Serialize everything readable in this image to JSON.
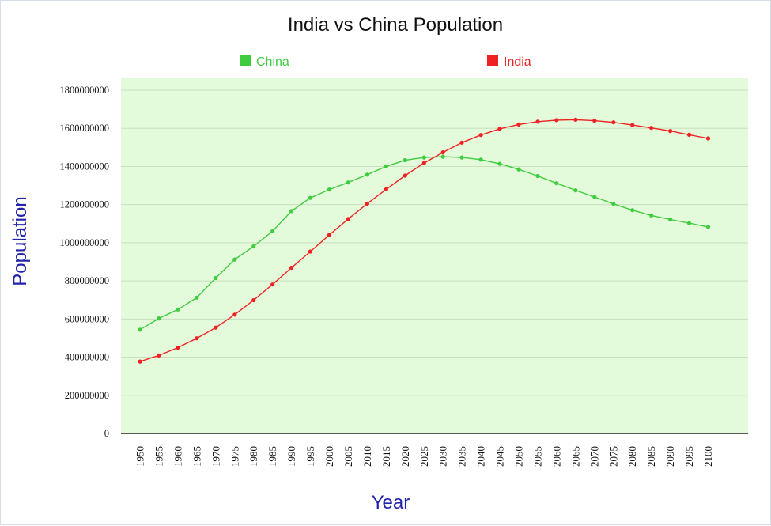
{
  "chart_data": {
    "type": "line",
    "title": "India vs China Population",
    "xlabel": "Year",
    "ylabel": "Population",
    "ylim": [
      0,
      1800000000
    ],
    "yticks": [
      0,
      200000000,
      400000000,
      600000000,
      800000000,
      1000000000,
      1200000000,
      1400000000,
      1600000000,
      1800000000
    ],
    "ytick_labels": [
      "0",
      "200000000",
      "400000000",
      "600000000",
      "800000000",
      "1000000000",
      "1200000000",
      "1400000000",
      "1600000000",
      "1800000000"
    ],
    "x": [
      "1950",
      "1955",
      "1960",
      "1965",
      "1970",
      "1975",
      "1980",
      "1985",
      "1990",
      "1995",
      "2000",
      "2005",
      "2010",
      "2015",
      "2020",
      "2025",
      "2030",
      "2035",
      "2040",
      "2045",
      "2050",
      "2055",
      "2060",
      "2065",
      "2070",
      "2075",
      "2080",
      "2085",
      "2090",
      "2095",
      "2100"
    ],
    "grid": true,
    "legend_position": "top",
    "plot_background": "#e3fadb",
    "axis_title_color": "#2222aa",
    "series": [
      {
        "name": "China",
        "color": "#3fcc3f",
        "values": [
          544000000,
          603000000,
          650000000,
          712000000,
          815000000,
          912000000,
          981000000,
          1060000000,
          1166000000,
          1235000000,
          1279000000,
          1316000000,
          1357000000,
          1400000000,
          1433000000,
          1447000000,
          1451000000,
          1447000000,
          1436000000,
          1414000000,
          1385000000,
          1350000000,
          1312000000,
          1275000000,
          1240000000,
          1204000000,
          1171000000,
          1143000000,
          1122000000,
          1103000000,
          1083000000
        ]
      },
      {
        "name": "India",
        "color": "#ee2222",
        "values": [
          377000000,
          409000000,
          450000000,
          499000000,
          555000000,
          623000000,
          699000000,
          781000000,
          869000000,
          954000000,
          1041000000,
          1125000000,
          1205000000,
          1280000000,
          1352000000,
          1418000000,
          1474000000,
          1525000000,
          1565000000,
          1597000000,
          1620000000,
          1635000000,
          1643000000,
          1645000000,
          1640000000,
          1631000000,
          1617000000,
          1602000000,
          1586000000,
          1566000000,
          1547000000
        ]
      }
    ]
  }
}
